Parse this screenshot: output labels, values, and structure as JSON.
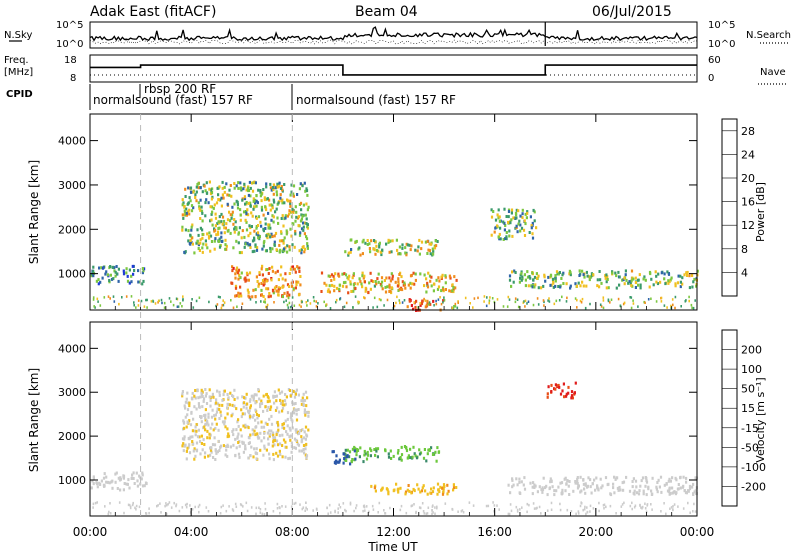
{
  "header": {
    "site": "Adak East (fitACF)",
    "beam": "Beam 04",
    "date": "06/Jul/2015"
  },
  "labels": {
    "nsky": "N.Sky",
    "nsearch": "N.Search",
    "freq_line1": "Freq.",
    "freq_line2": "[MHz]",
    "nave": "Nave",
    "cpid": "CPID",
    "xlabel": "Time UT",
    "ylabel": "Slant Range [km]",
    "power_label": "Power [dB]",
    "velocity_label": "Velocity [m s⁻¹]"
  },
  "noise_panel": {
    "left_ticks": [
      "10^5",
      "10^0"
    ],
    "right_ticks": [
      "10^5",
      "10^0"
    ]
  },
  "freq_panel": {
    "left_ticks": [
      "18",
      "8"
    ],
    "right_ticks": [
      "60",
      "0"
    ]
  },
  "cpid_panel": {
    "segments": [
      {
        "text": "normalsound (fast) 157 RF",
        "start_hour": 0
      },
      {
        "text": "rbsp 200 RF",
        "start_hour": 2
      },
      {
        "text": "normalsound (fast) 157 RF",
        "start_hour": 8
      }
    ]
  },
  "chart_data": [
    {
      "type": "heatmap",
      "title": "Power",
      "xlabel": "Time UT",
      "ylabel": "Slant Range [km]",
      "x_unit": "hours UT",
      "xlim": [
        0,
        24
      ],
      "ylim": [
        180,
        4600
      ],
      "x_ticks": [
        "00:00",
        "04:00",
        "08:00",
        "12:00",
        "16:00",
        "20:00",
        "00:00"
      ],
      "y_ticks": [
        1000,
        2000,
        3000,
        4000
      ],
      "colorbar": {
        "label": "Power [dB]",
        "ticks": [
          4,
          8,
          12,
          16,
          20,
          24,
          28
        ],
        "range": [
          0,
          30
        ],
        "colors": [
          "#1f3bd6",
          "#2e64a8",
          "#3a9a6a",
          "#7cc740",
          "#f0c020",
          "#f08c1c",
          "#e84e18",
          "#e01c1c"
        ]
      },
      "features": [
        {
          "hours": [
            0,
            2.2
          ],
          "range_km": [
            800,
            1200
          ],
          "dB": 8
        },
        {
          "hours": [
            3.6,
            8.6
          ],
          "range_km": [
            1500,
            3100
          ],
          "dB": 13
        },
        {
          "hours": [
            5.5,
            8.3
          ],
          "range_km": [
            500,
            1200
          ],
          "dB": 20
        },
        {
          "hours": [
            9.0,
            14.5
          ],
          "range_km": [
            600,
            1050
          ],
          "dB": 18
        },
        {
          "hours": [
            10.0,
            13.8
          ],
          "range_km": [
            1450,
            1800
          ],
          "dB": 14
        },
        {
          "hours": [
            12.5,
            14.0
          ],
          "range_km": [
            200,
            450
          ],
          "dB": 28
        },
        {
          "hours": [
            15.8,
            17.6
          ],
          "range_km": [
            1800,
            2500
          ],
          "dB": 12
        },
        {
          "hours": [
            16.5,
            24.0
          ],
          "range_km": [
            700,
            1100
          ],
          "dB": 12
        }
      ]
    },
    {
      "type": "heatmap",
      "title": "Velocity",
      "xlabel": "Time UT",
      "ylabel": "Slant Range [km]",
      "x_unit": "hours UT",
      "xlim": [
        0,
        24
      ],
      "ylim": [
        180,
        4600
      ],
      "x_ticks": [
        "00:00",
        "04:00",
        "08:00",
        "12:00",
        "16:00",
        "20:00",
        "00:00"
      ],
      "y_ticks": [
        1000,
        2000,
        3000,
        4000
      ],
      "colorbar": {
        "label": "Velocity [m s⁻¹]",
        "ticks": [
          200,
          100,
          50,
          15,
          -15,
          -50,
          -100,
          -200
        ],
        "colors": [
          "#1c2fd0",
          "#2a57a8",
          "#3a8a6a",
          "#6cc83c",
          "#cccccc",
          "#f0c020",
          "#f08c1c",
          "#e84e18",
          "#e01c1c"
        ]
      },
      "features": [
        {
          "hours": [
            0,
            2.2
          ],
          "range_km": [
            800,
            1200
          ],
          "m_per_s": 0
        },
        {
          "hours": [
            3.6,
            8.6
          ],
          "range_km": [
            1500,
            3100
          ],
          "m_per_s": -10
        },
        {
          "hours": [
            10.0,
            13.8
          ],
          "range_km": [
            1450,
            1800
          ],
          "m_per_s": 40
        },
        {
          "hours": [
            9.5,
            10.5
          ],
          "range_km": [
            1400,
            1700
          ],
          "m_per_s": 150
        },
        {
          "hours": [
            11.0,
            14.5
          ],
          "range_km": [
            700,
            950
          ],
          "m_per_s": -40
        },
        {
          "hours": [
            18.0,
            19.2
          ],
          "range_km": [
            2900,
            3250
          ],
          "m_per_s": -200
        },
        {
          "hours": [
            16.5,
            24.0
          ],
          "range_km": [
            700,
            1100
          ],
          "m_per_s": 0
        }
      ]
    }
  ]
}
